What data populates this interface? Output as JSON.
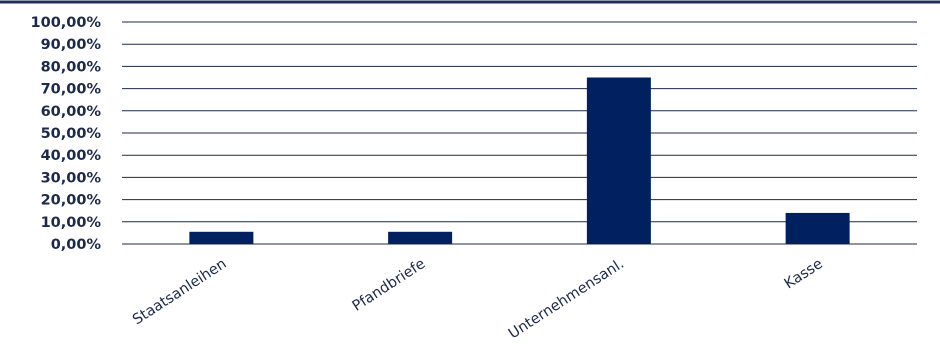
{
  "chart_data": {
    "type": "bar",
    "title": "",
    "xlabel": "",
    "ylabel": "",
    "categories": [
      "Staatsanleihen",
      "Pfandbriefe",
      "Unternehmensanl.",
      "Kasse"
    ],
    "values": [
      5.5,
      5.5,
      75.0,
      14.0
    ],
    "ylim": [
      0,
      100
    ],
    "yticks": [
      0,
      10,
      20,
      30,
      40,
      50,
      60,
      70,
      80,
      90,
      100
    ],
    "ytick_labels": [
      "0,00%",
      "10,00%",
      "20,00%",
      "30,00%",
      "40,00%",
      "50,00%",
      "60,00%",
      "70,00%",
      "80,00%",
      "90,00%",
      "100,00%"
    ],
    "bar_color": "#002060",
    "grid": true,
    "legend": "none"
  }
}
